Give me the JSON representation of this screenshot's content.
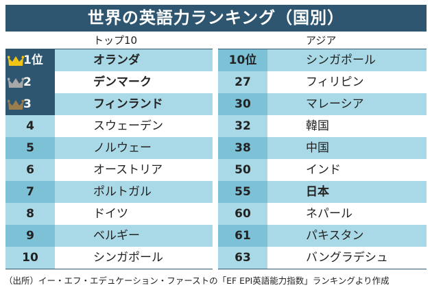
{
  "title": "世界の英語力ランキング（国別）",
  "top10": {
    "heading": "トップ10",
    "rows": [
      {
        "rank": "1位",
        "name": "オランダ",
        "crown": "#f2c514"
      },
      {
        "rank": "2",
        "name": "デンマーク",
        "crown": "#a8a8a8"
      },
      {
        "rank": "3",
        "name": "フィンランド",
        "crown": "#9a7d4c"
      },
      {
        "rank": "4",
        "name": "スウェーデン"
      },
      {
        "rank": "5",
        "name": "ノルウェー"
      },
      {
        "rank": "6",
        "name": "オーストリア"
      },
      {
        "rank": "7",
        "name": "ポルトガル"
      },
      {
        "rank": "8",
        "name": "ドイツ"
      },
      {
        "rank": "9",
        "name": "ベルギー"
      },
      {
        "rank": "10",
        "name": "シンガポール"
      }
    ]
  },
  "asia": {
    "heading": "アジア",
    "rows": [
      {
        "rank": "10位",
        "name": "シンガポール"
      },
      {
        "rank": "27",
        "name": "フィリピン"
      },
      {
        "rank": "30",
        "name": "マレーシア"
      },
      {
        "rank": "32",
        "name": "韓国"
      },
      {
        "rank": "38",
        "name": "中国"
      },
      {
        "rank": "50",
        "name": "インド"
      },
      {
        "rank": "55",
        "name": "日本",
        "highlight": true
      },
      {
        "rank": "60",
        "name": "ネパール"
      },
      {
        "rank": "61",
        "name": "パキスタン"
      },
      {
        "rank": "63",
        "name": "バングラデシュ"
      }
    ]
  },
  "source": "（出所）イー・エフ・エデュケーション・ファーストの「EF EPI英語能力指数」ランキングより作成"
}
